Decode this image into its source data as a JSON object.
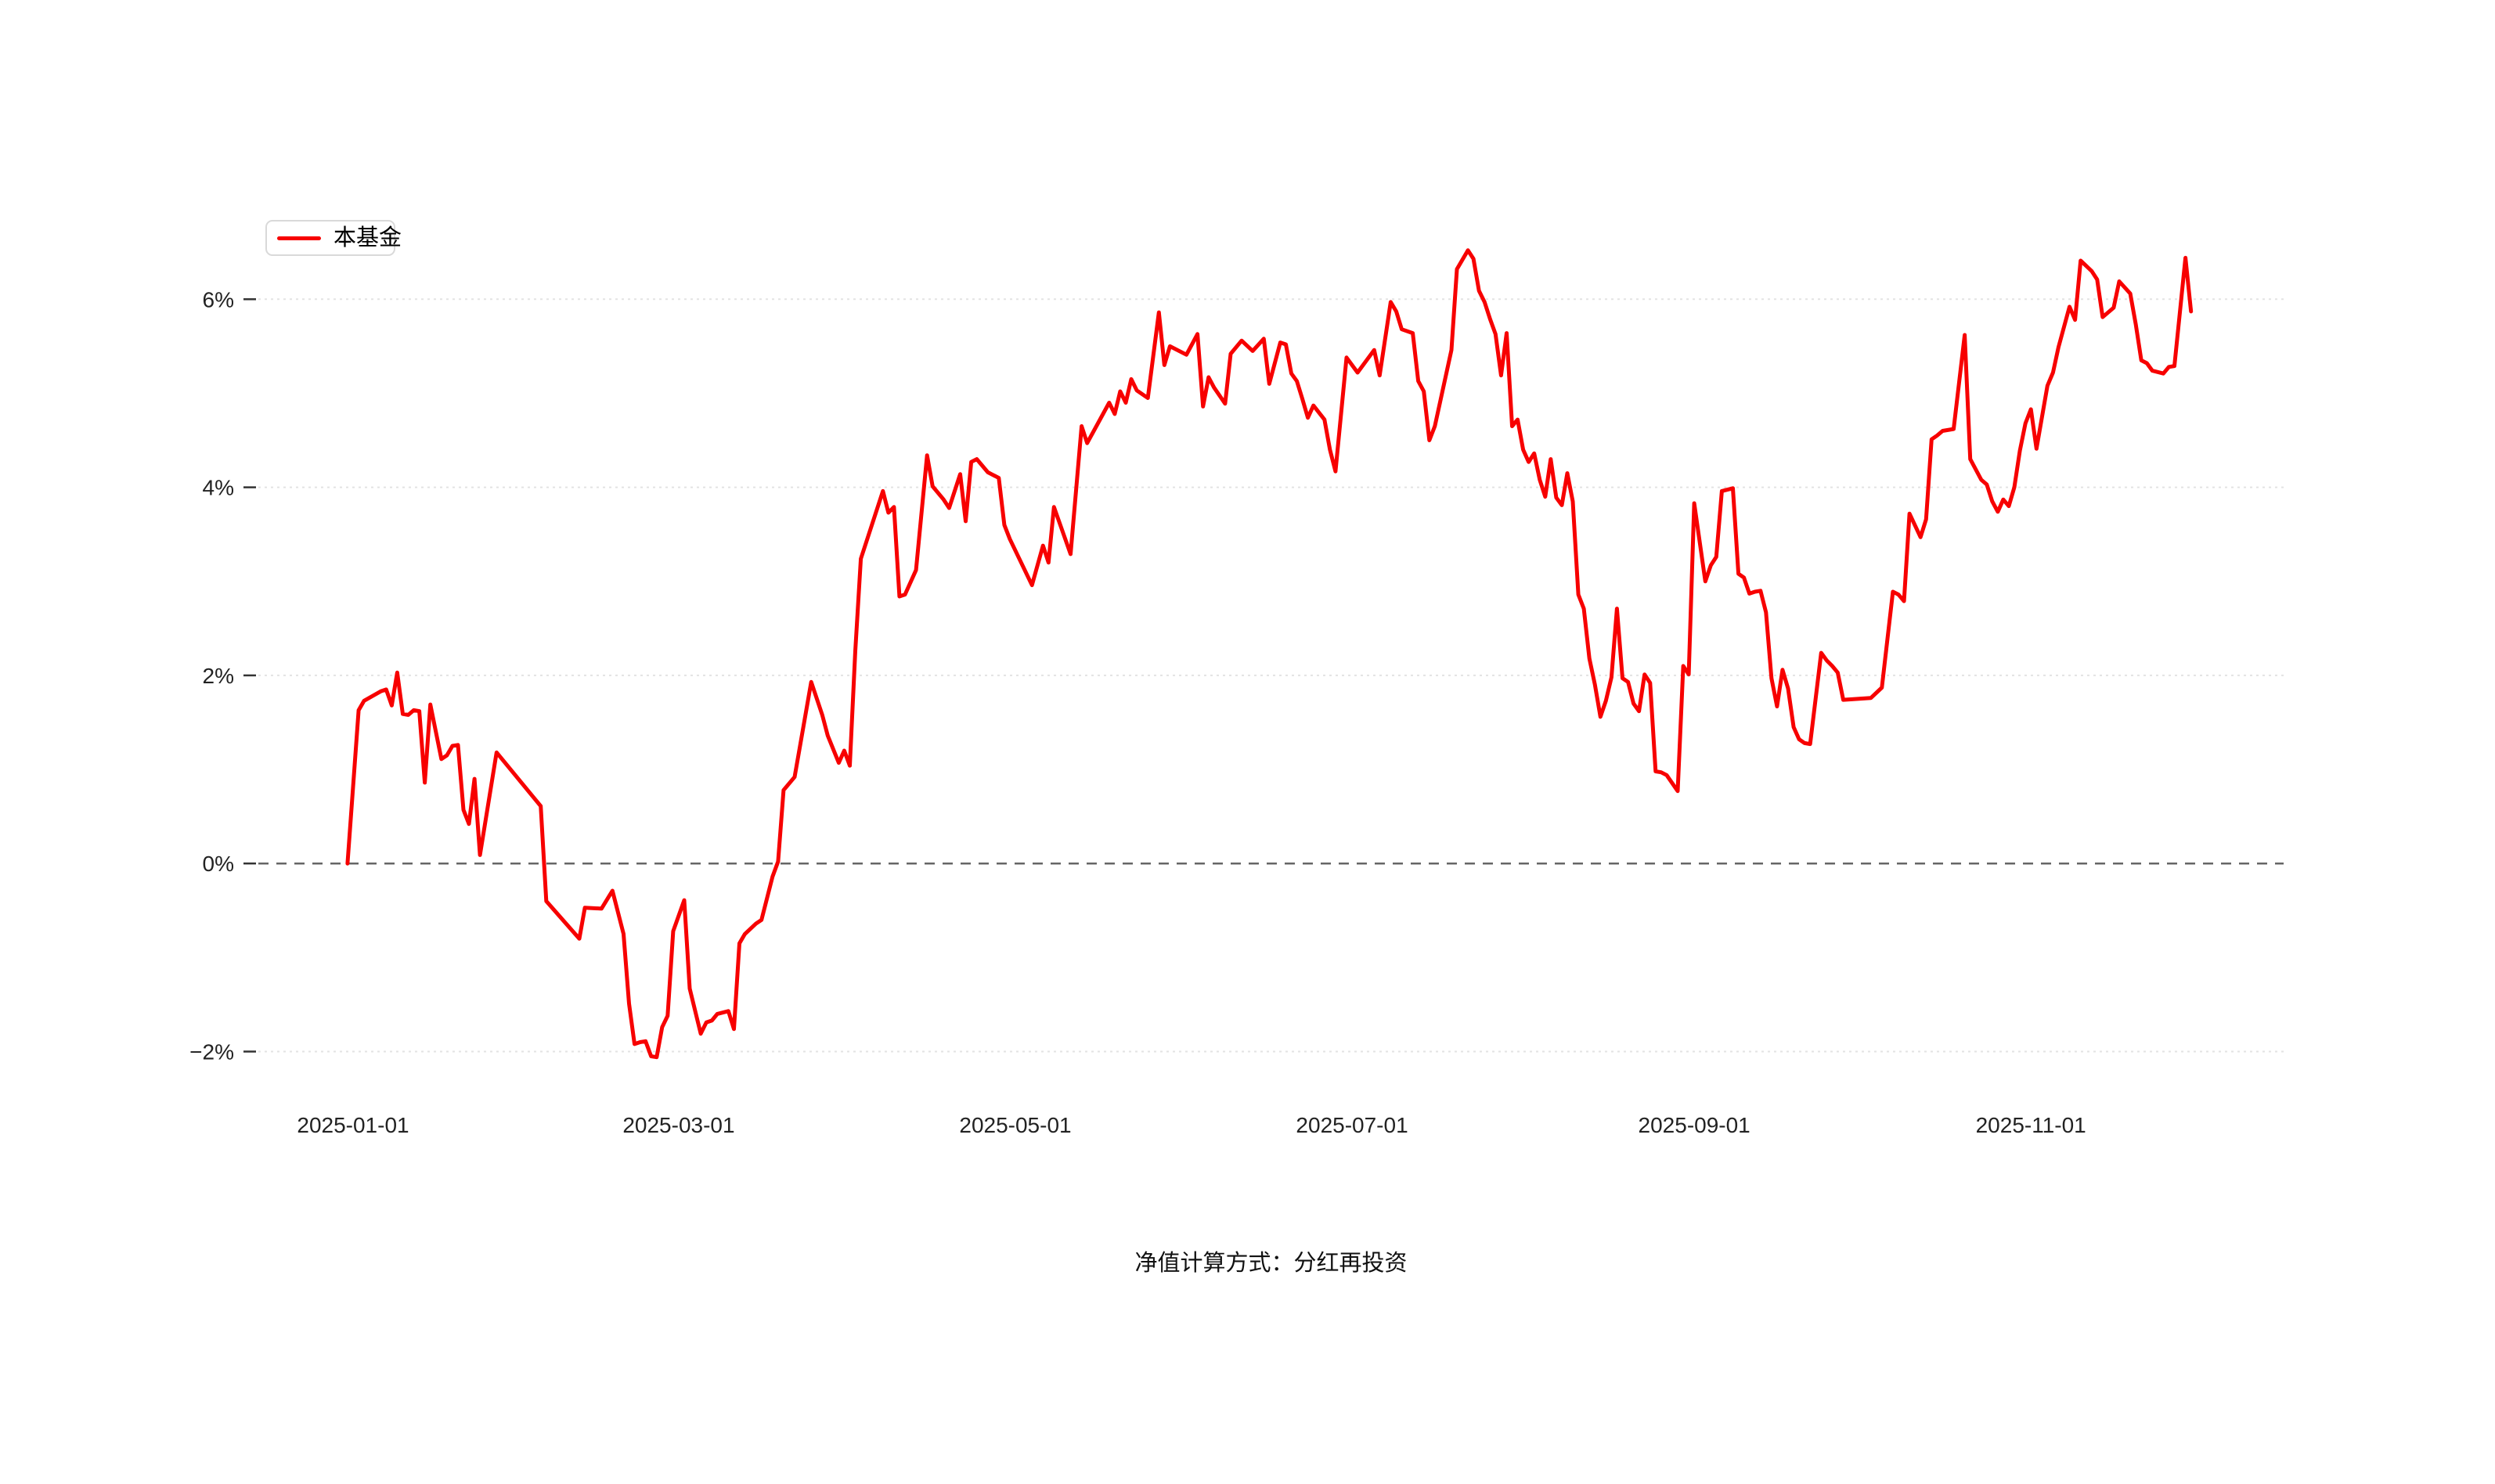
{
  "legend": {
    "label": "本基金"
  },
  "footer": {
    "note": "净值计算方式：分红再投资"
  },
  "colors": {
    "line": "#f70000",
    "grid": "#e3e3e3",
    "zero_line": "#666666",
    "axis_text": "#222222",
    "tick": "#333333",
    "legend_border": "#d9d9d9",
    "background": "#ffffff"
  },
  "chart_data": {
    "type": "line",
    "title": "",
    "ylabel": "",
    "xlabel": "",
    "unit": "%",
    "grid": "horizontal dotted",
    "zero_line_style": "dashed",
    "legend_position": "top-left",
    "ylim": [
      -2.8,
      7.0
    ],
    "y_axis": {
      "tick_labels": [
        "6%",
        "4%",
        "2%",
        "0%",
        "−2%"
      ],
      "tick_values": [
        6,
        4,
        2,
        0,
        -2
      ]
    },
    "x_axis": {
      "tick_labels": [
        "2025-01-01",
        "2025-03-01",
        "2025-05-01",
        "2025-07-01",
        "2025-09-01",
        "2025-11-01"
      ],
      "tick_dates": [
        "2025-01-01",
        "2025-03-01",
        "2025-05-01",
        "2025-07-01",
        "2025-09-01",
        "2025-11-01"
      ]
    },
    "series": [
      {
        "name": "本基金",
        "color": "#f70000",
        "points": [
          [
            "2024-12-31",
            0.0
          ],
          [
            "2025-01-02",
            1.63
          ],
          [
            "2025-01-03",
            1.73
          ],
          [
            "2025-01-06",
            1.83
          ],
          [
            "2025-01-07",
            1.85
          ],
          [
            "2025-01-08",
            1.68
          ],
          [
            "2025-01-09",
            2.03
          ],
          [
            "2025-01-10",
            1.59
          ],
          [
            "2025-01-11",
            1.58
          ],
          [
            "2025-01-12",
            1.63
          ],
          [
            "2025-01-13",
            1.62
          ],
          [
            "2025-01-14",
            0.86
          ],
          [
            "2025-01-15",
            1.69
          ],
          [
            "2025-01-17",
            1.11
          ],
          [
            "2025-01-18",
            1.15
          ],
          [
            "2025-01-19",
            1.25
          ],
          [
            "2025-01-20",
            1.26
          ],
          [
            "2025-01-21",
            0.57
          ],
          [
            "2025-01-22",
            0.42
          ],
          [
            "2025-01-23",
            0.9
          ],
          [
            "2025-01-24",
            0.09
          ],
          [
            "2025-01-27",
            1.18
          ],
          [
            "2025-02-04",
            0.61
          ],
          [
            "2025-02-05",
            -0.4
          ],
          [
            "2025-02-11",
            -0.8
          ],
          [
            "2025-02-12",
            -0.47
          ],
          [
            "2025-02-15",
            -0.48
          ],
          [
            "2025-02-17",
            -0.29
          ],
          [
            "2025-02-19",
            -0.75
          ],
          [
            "2025-02-20",
            -1.49
          ],
          [
            "2025-02-21",
            -1.92
          ],
          [
            "2025-02-22",
            -1.9
          ],
          [
            "2025-02-23",
            -1.89
          ],
          [
            "2025-02-24",
            -2.05
          ],
          [
            "2025-02-25",
            -2.06
          ],
          [
            "2025-02-26",
            -1.74
          ],
          [
            "2025-02-27",
            -1.62
          ],
          [
            "2025-02-28",
            -0.72
          ],
          [
            "2025-03-02",
            -0.39
          ],
          [
            "2025-03-03",
            -1.33
          ],
          [
            "2025-03-05",
            -1.81
          ],
          [
            "2025-03-06",
            -1.69
          ],
          [
            "2025-03-07",
            -1.67
          ],
          [
            "2025-03-08",
            -1.6
          ],
          [
            "2025-03-10",
            -1.57
          ],
          [
            "2025-03-11",
            -1.76
          ],
          [
            "2025-03-12",
            -0.85
          ],
          [
            "2025-03-13",
            -0.75
          ],
          [
            "2025-03-15",
            -0.64
          ],
          [
            "2025-03-16",
            -0.6
          ],
          [
            "2025-03-18",
            -0.14
          ],
          [
            "2025-03-19",
            0.02
          ],
          [
            "2025-03-20",
            0.78
          ],
          [
            "2025-03-22",
            0.92
          ],
          [
            "2025-03-25",
            1.93
          ],
          [
            "2025-03-27",
            1.58
          ],
          [
            "2025-03-28",
            1.36
          ],
          [
            "2025-03-30",
            1.07
          ],
          [
            "2025-03-31",
            1.2
          ],
          [
            "2025-04-01",
            1.04
          ],
          [
            "2025-04-02",
            2.26
          ],
          [
            "2025-04-03",
            3.24
          ],
          [
            "2025-04-07",
            3.96
          ],
          [
            "2025-04-08",
            3.73
          ],
          [
            "2025-04-09",
            3.79
          ],
          [
            "2025-04-10",
            2.84
          ],
          [
            "2025-04-11",
            2.86
          ],
          [
            "2025-04-13",
            3.12
          ],
          [
            "2025-04-15",
            4.34
          ],
          [
            "2025-04-16",
            4.01
          ],
          [
            "2025-04-18",
            3.87
          ],
          [
            "2025-04-19",
            3.78
          ],
          [
            "2025-04-21",
            4.14
          ],
          [
            "2025-04-22",
            3.64
          ],
          [
            "2025-04-23",
            4.27
          ],
          [
            "2025-04-24",
            4.3
          ],
          [
            "2025-04-26",
            4.16
          ],
          [
            "2025-04-28",
            4.1
          ],
          [
            "2025-04-29",
            3.6
          ],
          [
            "2025-04-30",
            3.45
          ],
          [
            "2025-05-04",
            2.96
          ],
          [
            "2025-05-06",
            3.38
          ],
          [
            "2025-05-07",
            3.2
          ],
          [
            "2025-05-08",
            3.79
          ],
          [
            "2025-05-11",
            3.29
          ],
          [
            "2025-05-13",
            4.65
          ],
          [
            "2025-05-14",
            4.47
          ],
          [
            "2025-05-18",
            4.9
          ],
          [
            "2025-05-19",
            4.78
          ],
          [
            "2025-05-20",
            5.02
          ],
          [
            "2025-05-21",
            4.9
          ],
          [
            "2025-05-22",
            5.15
          ],
          [
            "2025-05-23",
            5.03
          ],
          [
            "2025-05-25",
            4.95
          ],
          [
            "2025-05-27",
            5.86
          ],
          [
            "2025-05-28",
            5.3
          ],
          [
            "2025-05-29",
            5.5
          ],
          [
            "2025-06-01",
            5.41
          ],
          [
            "2025-06-03",
            5.63
          ],
          [
            "2025-06-04",
            4.86
          ],
          [
            "2025-06-05",
            5.17
          ],
          [
            "2025-06-06",
            5.06
          ],
          [
            "2025-06-08",
            4.89
          ],
          [
            "2025-06-09",
            5.42
          ],
          [
            "2025-06-11",
            5.56
          ],
          [
            "2025-06-13",
            5.45
          ],
          [
            "2025-06-15",
            5.58
          ],
          [
            "2025-06-16",
            5.1
          ],
          [
            "2025-06-18",
            5.54
          ],
          [
            "2025-06-19",
            5.52
          ],
          [
            "2025-06-20",
            5.21
          ],
          [
            "2025-06-21",
            5.13
          ],
          [
            "2025-06-22",
            4.94
          ],
          [
            "2025-06-23",
            4.74
          ],
          [
            "2025-06-24",
            4.87
          ],
          [
            "2025-06-26",
            4.72
          ],
          [
            "2025-06-27",
            4.4
          ],
          [
            "2025-06-28",
            4.17
          ],
          [
            "2025-06-30",
            5.38
          ],
          [
            "2025-07-02",
            5.22
          ],
          [
            "2025-07-05",
            5.46
          ],
          [
            "2025-07-06",
            5.19
          ],
          [
            "2025-07-08",
            5.97
          ],
          [
            "2025-07-09",
            5.87
          ],
          [
            "2025-07-10",
            5.68
          ],
          [
            "2025-07-12",
            5.64
          ],
          [
            "2025-07-13",
            5.13
          ],
          [
            "2025-07-14",
            5.02
          ],
          [
            "2025-07-15",
            4.5
          ],
          [
            "2025-07-16",
            4.65
          ],
          [
            "2025-07-19",
            5.46
          ],
          [
            "2025-07-20",
            6.32
          ],
          [
            "2025-07-22",
            6.52
          ],
          [
            "2025-07-23",
            6.43
          ],
          [
            "2025-07-24",
            6.09
          ],
          [
            "2025-07-25",
            5.97
          ],
          [
            "2025-07-26",
            5.79
          ],
          [
            "2025-07-27",
            5.63
          ],
          [
            "2025-07-28",
            5.19
          ],
          [
            "2025-07-29",
            5.64
          ],
          [
            "2025-07-30",
            4.65
          ],
          [
            "2025-07-31",
            4.72
          ],
          [
            "2025-08-01",
            4.4
          ],
          [
            "2025-08-02",
            4.27
          ],
          [
            "2025-08-03",
            4.36
          ],
          [
            "2025-08-04",
            4.08
          ],
          [
            "2025-08-05",
            3.9
          ],
          [
            "2025-08-06",
            4.3
          ],
          [
            "2025-08-07",
            3.89
          ],
          [
            "2025-08-08",
            3.81
          ],
          [
            "2025-08-09",
            4.15
          ],
          [
            "2025-08-10",
            3.85
          ],
          [
            "2025-08-11",
            2.86
          ],
          [
            "2025-08-12",
            2.71
          ],
          [
            "2025-08-13",
            2.18
          ],
          [
            "2025-08-14",
            1.9
          ],
          [
            "2025-08-15",
            1.56
          ],
          [
            "2025-08-16",
            1.73
          ],
          [
            "2025-08-17",
            1.98
          ],
          [
            "2025-08-18",
            2.71
          ],
          [
            "2025-08-19",
            1.97
          ],
          [
            "2025-08-20",
            1.93
          ],
          [
            "2025-08-21",
            1.7
          ],
          [
            "2025-08-22",
            1.62
          ],
          [
            "2025-08-23",
            2.01
          ],
          [
            "2025-08-24",
            1.92
          ],
          [
            "2025-08-25",
            0.98
          ],
          [
            "2025-08-26",
            0.97
          ],
          [
            "2025-08-27",
            0.94
          ],
          [
            "2025-08-29",
            0.77
          ],
          [
            "2025-08-30",
            2.1
          ],
          [
            "2025-08-31",
            2.01
          ],
          [
            "2025-09-01",
            3.83
          ],
          [
            "2025-09-03",
            3.0
          ],
          [
            "2025-09-04",
            3.17
          ],
          [
            "2025-09-05",
            3.26
          ],
          [
            "2025-09-06",
            3.96
          ],
          [
            "2025-09-08",
            3.99
          ],
          [
            "2025-09-09",
            3.08
          ],
          [
            "2025-09-10",
            3.04
          ],
          [
            "2025-09-11",
            2.87
          ],
          [
            "2025-09-12",
            2.89
          ],
          [
            "2025-09-13",
            2.9
          ],
          [
            "2025-09-14",
            2.67
          ],
          [
            "2025-09-15",
            1.97
          ],
          [
            "2025-09-16",
            1.67
          ],
          [
            "2025-09-17",
            2.06
          ],
          [
            "2025-09-18",
            1.86
          ],
          [
            "2025-09-19",
            1.45
          ],
          [
            "2025-09-20",
            1.32
          ],
          [
            "2025-09-21",
            1.28
          ],
          [
            "2025-09-22",
            1.27
          ],
          [
            "2025-09-24",
            2.24
          ],
          [
            "2025-09-25",
            2.16
          ],
          [
            "2025-09-26",
            2.1
          ],
          [
            "2025-09-27",
            2.03
          ],
          [
            "2025-09-28",
            1.74
          ],
          [
            "2025-10-03",
            1.76
          ],
          [
            "2025-10-05",
            1.87
          ],
          [
            "2025-10-07",
            2.89
          ],
          [
            "2025-10-08",
            2.86
          ],
          [
            "2025-10-09",
            2.79
          ],
          [
            "2025-10-10",
            3.72
          ],
          [
            "2025-10-12",
            3.47
          ],
          [
            "2025-10-13",
            3.66
          ],
          [
            "2025-10-14",
            4.51
          ],
          [
            "2025-10-15",
            4.55
          ],
          [
            "2025-10-16",
            4.6
          ],
          [
            "2025-10-18",
            4.62
          ],
          [
            "2025-10-20",
            5.62
          ],
          [
            "2025-10-21",
            4.3
          ],
          [
            "2025-10-23",
            4.08
          ],
          [
            "2025-10-24",
            4.03
          ],
          [
            "2025-10-25",
            3.85
          ],
          [
            "2025-10-26",
            3.74
          ],
          [
            "2025-10-27",
            3.87
          ],
          [
            "2025-10-28",
            3.8
          ],
          [
            "2025-10-29",
            4.0
          ],
          [
            "2025-10-30",
            4.39
          ],
          [
            "2025-10-31",
            4.68
          ],
          [
            "2025-11-01",
            4.83
          ],
          [
            "2025-11-02",
            4.41
          ],
          [
            "2025-11-04",
            5.08
          ],
          [
            "2025-11-05",
            5.22
          ],
          [
            "2025-11-06",
            5.49
          ],
          [
            "2025-11-08",
            5.92
          ],
          [
            "2025-11-09",
            5.78
          ],
          [
            "2025-11-10",
            6.41
          ],
          [
            "2025-11-12",
            6.3
          ],
          [
            "2025-11-13",
            6.21
          ],
          [
            "2025-11-14",
            5.81
          ],
          [
            "2025-11-16",
            5.91
          ],
          [
            "2025-11-17",
            6.19
          ],
          [
            "2025-11-19",
            6.06
          ],
          [
            "2025-11-20",
            5.73
          ],
          [
            "2025-11-21",
            5.35
          ],
          [
            "2025-11-22",
            5.32
          ],
          [
            "2025-11-23",
            5.24
          ],
          [
            "2025-11-25",
            5.21
          ],
          [
            "2025-11-26",
            5.28
          ],
          [
            "2025-11-27",
            5.29
          ],
          [
            "2025-11-29",
            6.44
          ],
          [
            "2025-11-30",
            5.87
          ]
        ]
      }
    ]
  }
}
